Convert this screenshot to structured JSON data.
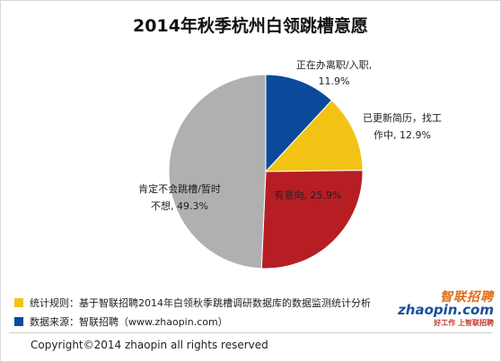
{
  "chart_data": {
    "type": "pie",
    "title": "2014年秋季杭州白领跳槽意愿",
    "slices": [
      {
        "label_line1": "正在办离职/入职,",
        "label_line2": "11.9%",
        "value": 11.9,
        "color": "#0b4a9a"
      },
      {
        "label_line1": "已更新简历，找工",
        "label_line2": "作中, 12.9%",
        "value": 12.9,
        "color": "#f2c315"
      },
      {
        "label_line1": "有意向, 25.9%",
        "label_line2": "",
        "value": 25.9,
        "color": "#b61e24"
      },
      {
        "label_line1": "肯定不会跳槽/暂时",
        "label_line2": "不想, 49.3%",
        "value": 49.3,
        "color": "#b0b0b2"
      }
    ]
  },
  "legend": [
    {
      "text": "统计规则：基于智联招聘2014年白领秋季跳槽调研数据库的数据监测统计分析",
      "color": "#f2c315"
    },
    {
      "text": "数据来源：智联招聘（www.zhaopin.com）",
      "color": "#0b4a9a"
    }
  ],
  "logo": {
    "cn": "智联招聘",
    "en": "zhaopin.com",
    "slogan": "好工作 上智联招聘"
  },
  "footer": {
    "copyright": "Copyright©2014 zhaopin all rights reserved"
  }
}
